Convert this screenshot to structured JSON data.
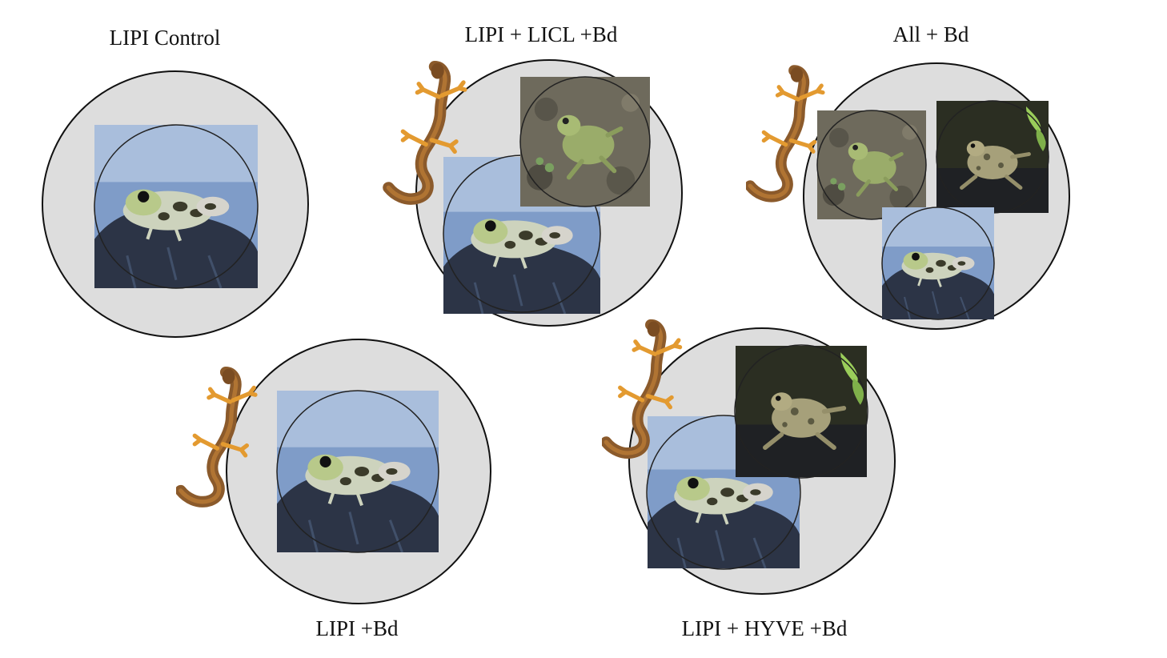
{
  "panels": [
    {
      "label": "LIPI Control",
      "species": [
        "LIPI"
      ],
      "newt": false
    },
    {
      "label": "LIPI + LICL +Bd",
      "species": [
        "LIPI",
        "LICL"
      ],
      "newt": true
    },
    {
      "label": "All + Bd",
      "species": [
        "LIPI",
        "LICL",
        "HYVE"
      ],
      "newt": true
    },
    {
      "label": "LIPI +Bd",
      "species": [
        "LIPI"
      ],
      "newt": true
    },
    {
      "label": "LIPI + HYVE +Bd",
      "species": [
        "LIPI",
        "HYVE"
      ],
      "newt": true
    }
  ],
  "colors": {
    "tank_fill": "#dddddd",
    "tank_stroke": "#111111",
    "water_blue": "#7f9cc8",
    "rock": "#2c3446",
    "newt_orange": "#e39a30",
    "newt_brown": "#8b5a2b"
  }
}
